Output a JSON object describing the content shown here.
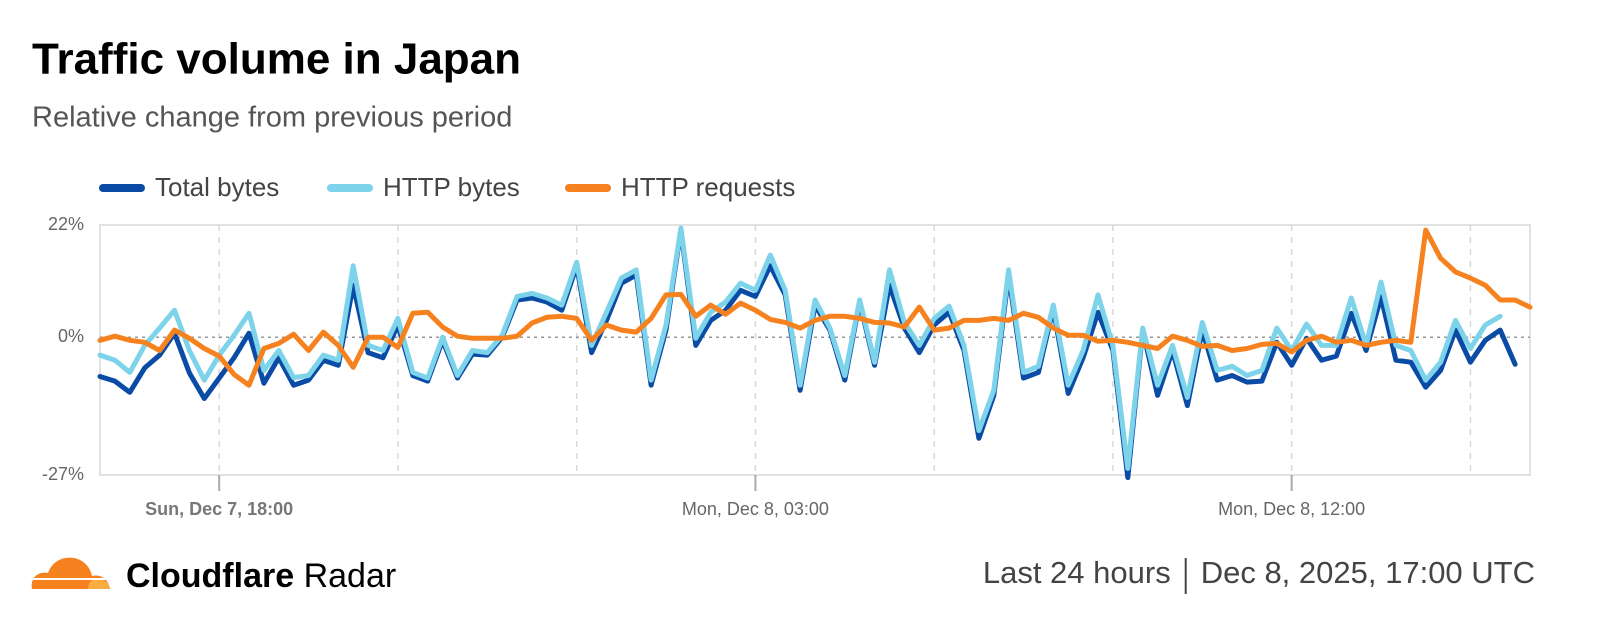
{
  "chart_data": {
    "type": "line",
    "title": "Traffic volume in Japan",
    "subtitle": "Relative change from previous period",
    "x": [
      "Sun, Dec 7, 16:00",
      "Sun, Dec 7, 16:15",
      "Sun, Dec 7, 16:30",
      "Sun, Dec 7, 16:45",
      "Sun, Dec 7, 17:00",
      "Sun, Dec 7, 17:15",
      "Sun, Dec 7, 17:30",
      "Sun, Dec 7, 17:45",
      "Sun, Dec 7, 18:00",
      "Sun, Dec 7, 18:15",
      "Sun, Dec 7, 18:30",
      "Sun, Dec 7, 18:45",
      "Sun, Dec 7, 19:00",
      "Sun, Dec 7, 19:15",
      "Sun, Dec 7, 19:30",
      "Sun, Dec 7, 19:45",
      "Sun, Dec 7, 20:00",
      "Sun, Dec 7, 20:15",
      "Sun, Dec 7, 20:30",
      "Sun, Dec 7, 20:45",
      "Sun, Dec 7, 21:00",
      "Sun, Dec 7, 21:15",
      "Sun, Dec 7, 21:30",
      "Sun, Dec 7, 21:45",
      "Sun, Dec 7, 22:00",
      "Sun, Dec 7, 22:15",
      "Sun, Dec 7, 22:30",
      "Sun, Dec 7, 22:45",
      "Sun, Dec 7, 23:00",
      "Sun, Dec 7, 23:15",
      "Sun, Dec 7, 23:30",
      "Sun, Dec 7, 23:45",
      "Mon, Dec 8, 00:00",
      "Mon, Dec 8, 00:15",
      "Mon, Dec 8, 00:30",
      "Mon, Dec 8, 00:45",
      "Mon, Dec 8, 01:00",
      "Mon, Dec 8, 01:15",
      "Mon, Dec 8, 01:30",
      "Mon, Dec 8, 01:45",
      "Mon, Dec 8, 02:00",
      "Mon, Dec 8, 02:15",
      "Mon, Dec 8, 02:30",
      "Mon, Dec 8, 02:45",
      "Mon, Dec 8, 03:00",
      "Mon, Dec 8, 03:15",
      "Mon, Dec 8, 03:30",
      "Mon, Dec 8, 03:45",
      "Mon, Dec 8, 04:00",
      "Mon, Dec 8, 04:15",
      "Mon, Dec 8, 04:30",
      "Mon, Dec 8, 04:45",
      "Mon, Dec 8, 05:00",
      "Mon, Dec 8, 05:15",
      "Mon, Dec 8, 05:30",
      "Mon, Dec 8, 05:45",
      "Mon, Dec 8, 06:00",
      "Mon, Dec 8, 06:15",
      "Mon, Dec 8, 06:30",
      "Mon, Dec 8, 06:45",
      "Mon, Dec 8, 07:00",
      "Mon, Dec 8, 07:15",
      "Mon, Dec 8, 07:30",
      "Mon, Dec 8, 07:45",
      "Mon, Dec 8, 08:00",
      "Mon, Dec 8, 08:15",
      "Mon, Dec 8, 08:30",
      "Mon, Dec 8, 08:45",
      "Mon, Dec 8, 09:00",
      "Mon, Dec 8, 09:15",
      "Mon, Dec 8, 09:30",
      "Mon, Dec 8, 09:45",
      "Mon, Dec 8, 10:00",
      "Mon, Dec 8, 10:15",
      "Mon, Dec 8, 10:30",
      "Mon, Dec 8, 10:45",
      "Mon, Dec 8, 11:00",
      "Mon, Dec 8, 11:15",
      "Mon, Dec 8, 11:30",
      "Mon, Dec 8, 11:45",
      "Mon, Dec 8, 12:00",
      "Mon, Dec 8, 12:15",
      "Mon, Dec 8, 12:30",
      "Mon, Dec 8, 12:45",
      "Mon, Dec 8, 13:00",
      "Mon, Dec 8, 13:15",
      "Mon, Dec 8, 13:30",
      "Mon, Dec 8, 13:45",
      "Mon, Dec 8, 14:00",
      "Mon, Dec 8, 14:15",
      "Mon, Dec 8, 14:30",
      "Mon, Dec 8, 14:45",
      "Mon, Dec 8, 15:00",
      "Mon, Dec 8, 15:15",
      "Mon, Dec 8, 15:30",
      "Mon, Dec 8, 15:45",
      "Mon, Dec 8, 16:00"
    ],
    "series": [
      {
        "name": "Total bytes",
        "color": "#0a4ba6",
        "values": [
          -7.7,
          -8.6,
          -10.8,
          -6,
          -3.5,
          0.8,
          -7,
          -12,
          -8,
          -4,
          0.8,
          -9,
          -4,
          -9.4,
          -8.4,
          -4.5,
          -5.5,
          10.2,
          -3,
          -4,
          2.4,
          -7.5,
          -8.6,
          -0.6,
          -8,
          -3.3,
          -3.5,
          0,
          7.3,
          7.7,
          6.9,
          5.3,
          14,
          -3,
          3.3,
          10.6,
          12.2,
          -9.4,
          1.4,
          21,
          -1.6,
          3.3,
          5.3,
          9.2,
          8,
          14,
          8.3,
          -10.4,
          6.3,
          1.4,
          -8.4,
          6.9,
          -5.5,
          10.2,
          1.8,
          -3,
          2.4,
          4.9,
          -2.6,
          -19.8,
          -11.4,
          12.2,
          -8,
          -6.9,
          5.7,
          -11,
          -4,
          4.9,
          -2.6,
          -27.5,
          1.4,
          -11.4,
          -2.6,
          -13.4,
          1.4,
          -8.4,
          -7.5,
          -8.8,
          -8.6,
          -1,
          -5.5,
          -0.2,
          -4.5,
          -3.7,
          4.7,
          -2.6,
          7.9,
          -4.5,
          -4.9,
          -9.8,
          -6.5,
          1.4,
          -4.9,
          -0.6,
          1.4,
          -5.3,
          null
        ]
      },
      {
        "name": "HTTP bytes",
        "color": "#7dd3ea",
        "values": [
          -3.5,
          -4.5,
          -6.9,
          -1.6,
          1.8,
          5.3,
          -2.6,
          -8.4,
          -3.5,
          0.4,
          4.7,
          -6.5,
          -2.6,
          -7.9,
          -7.5,
          -3.5,
          -4.5,
          14,
          -1.6,
          -2.6,
          3.7,
          -6.9,
          -8,
          0,
          -7.5,
          -2.6,
          -3,
          0.4,
          8,
          8.6,
          7.7,
          6.3,
          14.7,
          -1.6,
          4.9,
          11.6,
          13.2,
          -8.4,
          2.4,
          21.4,
          -0.2,
          4.9,
          6.9,
          10.6,
          9.2,
          16.1,
          9.2,
          -9.4,
          7.3,
          1.8,
          -7.5,
          7.3,
          -4.9,
          13.2,
          2.9,
          -1.6,
          3.7,
          6.1,
          -1.6,
          -18.3,
          -10.4,
          13.2,
          -6.9,
          -5.7,
          6.3,
          -9.4,
          -2.6,
          8.3,
          -1.6,
          -25.7,
          1.8,
          -9.4,
          -1.6,
          -11.8,
          2.9,
          -6.5,
          -5.7,
          -7.5,
          -6.5,
          1.8,
          -2.6,
          2.6,
          -1.6,
          -1.6,
          7.7,
          -1.6,
          10.8,
          -1.6,
          -2.6,
          -8.4,
          -4.9,
          3.3,
          -2.2,
          2.4,
          4.1,
          null,
          null
        ]
      },
      {
        "name": "HTTP requests",
        "color": "#f6821f",
        "values": [
          -0.6,
          0.2,
          -0.6,
          -1,
          -2.6,
          1.4,
          -0.2,
          -2.2,
          -3.7,
          -7.3,
          -9.4,
          -2.2,
          -1.2,
          0.6,
          -2.6,
          1,
          -1.6,
          -5.9,
          0,
          0,
          -2,
          4.7,
          4.9,
          2,
          0.2,
          -0.2,
          -0.2,
          -0.2,
          0.2,
          2.8,
          3.9,
          4.1,
          3.7,
          -0.6,
          2.4,
          1.4,
          1,
          3.7,
          8.3,
          8.4,
          4.1,
          6.3,
          4.5,
          6.7,
          5.3,
          3.5,
          2.9,
          1.8,
          3.3,
          4.1,
          4.1,
          3.7,
          2.9,
          2.8,
          2,
          5.9,
          1.4,
          1.8,
          3.3,
          3.3,
          3.7,
          3.3,
          4.7,
          3.9,
          1.8,
          0.4,
          0.4,
          -0.8,
          -0.6,
          -1,
          -1.6,
          -2.2,
          0.2,
          -0.6,
          -1.8,
          -1.6,
          -2.6,
          -2.2,
          -1.4,
          -1.2,
          -2.9,
          -0.6,
          0.2,
          -1,
          -0.6,
          -1.6,
          -1,
          -0.6,
          -1,
          21,
          15.5,
          12.8,
          11.6,
          10.2,
          7.3,
          7.3,
          5.9
        ]
      }
    ],
    "ylim": [
      -27,
      22
    ],
    "yticks": [
      {
        "value": 22,
        "label": "22%"
      },
      {
        "value": 0,
        "label": "0%"
      },
      {
        "value": -27,
        "label": "-27%"
      }
    ],
    "xticks": [
      "Sun, Dec 7, 18:00",
      "Mon, Dec 8, 03:00",
      "Mon, Dec 8, 12:00"
    ],
    "xgrid": [
      "Sun, Dec 7, 18:00",
      "Sun, Dec 7, 21:00",
      "Mon, Dec 8, 00:00",
      "Mon, Dec 8, 03:00",
      "Mon, Dec 8, 06:00",
      "Mon, Dec 8, 09:00",
      "Mon, Dec 8, 12:00",
      "Mon, Dec 8, 15:00"
    ],
    "legend": "top-left"
  },
  "footer": {
    "brand": "Cloudflare",
    "product": "Radar",
    "period": "Last 24 hours",
    "timestamp": "Dec 8, 2025, 17:00 UTC"
  }
}
